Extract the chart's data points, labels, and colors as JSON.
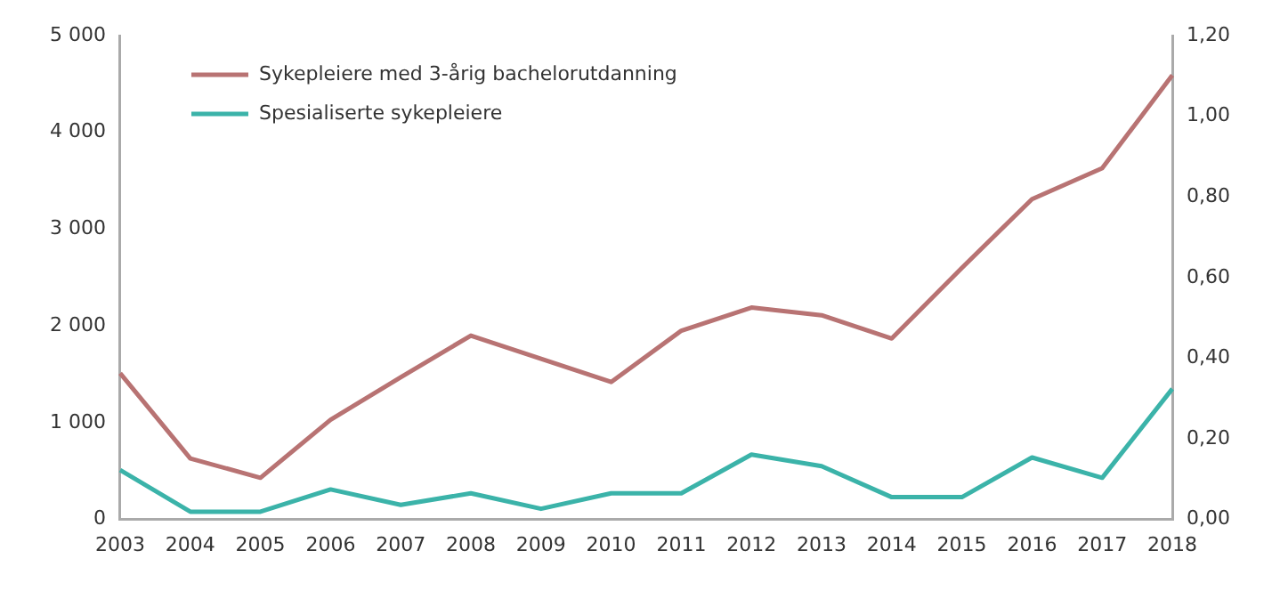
{
  "chart_data": {
    "type": "line",
    "categories": [
      "2003",
      "2004",
      "2005",
      "2006",
      "2007",
      "2008",
      "2009",
      "2010",
      "2011",
      "2012",
      "2013",
      "2014",
      "2015",
      "2016",
      "2017",
      "2018"
    ],
    "series": [
      {
        "name": "Sykepleiere med 3-årig bachelorutdanning",
        "color": "#b87373",
        "values": [
          1510,
          630,
          430,
          1030,
          1470,
          1900,
          1660,
          1420,
          1950,
          2190,
          2110,
          1870,
          2600,
          3310,
          3630,
          4590
        ]
      },
      {
        "name": "Spesialiserte sykepleiere",
        "color": "#3bb3a9",
        "values": [
          510,
          80,
          80,
          310,
          150,
          270,
          110,
          270,
          270,
          670,
          550,
          230,
          230,
          640,
          430,
          1350
        ]
      }
    ],
    "ylim": [
      0,
      5000
    ],
    "yticks": [
      0,
      {
        "value": 1000,
        "label": "1 000"
      },
      {
        "value": 2000,
        "label": "2 000"
      },
      {
        "value": 3000,
        "label": "3 000"
      },
      {
        "value": 4000,
        "label": "4 000"
      },
      {
        "value": 5000,
        "label": "5 000"
      }
    ],
    "y2lim": [
      0,
      1.2
    ],
    "y2ticks": [
      {
        "value": 0,
        "label": "0,00"
      },
      {
        "value": 0.2,
        "label": "0,20"
      },
      {
        "value": 0.4,
        "label": "0,40"
      },
      {
        "value": 0.6,
        "label": "0,60"
      },
      {
        "value": 0.8,
        "label": "0,80"
      },
      {
        "value": 1.0,
        "label": "1,00"
      },
      {
        "value": 1.2,
        "label": "1,20"
      }
    ],
    "grid": false,
    "legend": "top left",
    "marker": "none",
    "line_style": "solid"
  }
}
